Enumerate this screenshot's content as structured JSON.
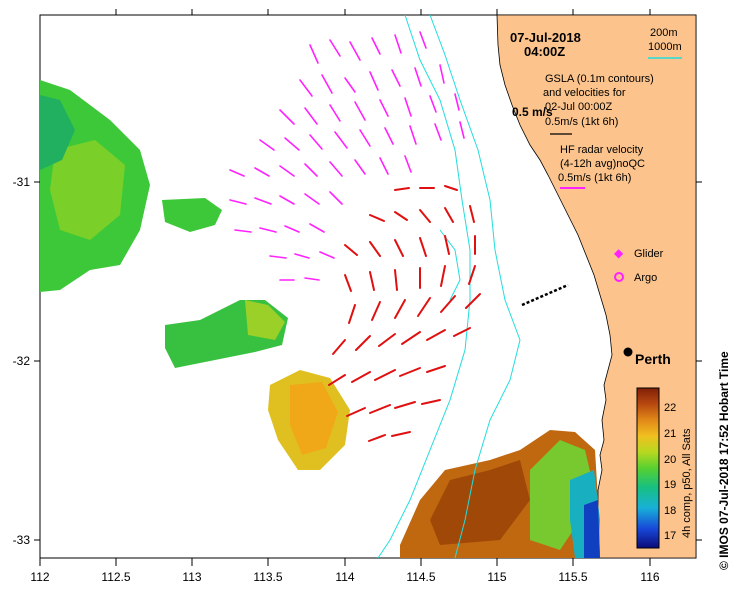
{
  "map": {
    "date_line1": "07-Jul-2018",
    "date_line2": "04:00Z",
    "contour_legend": {
      "c200": "200m",
      "c1000": "1000m"
    },
    "gsla_label": [
      "GSLA (0.1m contours)",
      "and velocities for",
      "02-Jul 00:00Z"
    ],
    "gsla_scale_label": "0.5m/s (1kt 6h)",
    "hf_label": [
      "HF radar velocity",
      "(4-12h avg)noQC"
    ],
    "hf_scale_label": "0.5m/s (1kt 6h)",
    "vector_scale_label": "0.5 m/s",
    "glider_label": "Glider",
    "argo_label": "Argo",
    "city_label": "Perth",
    "colorbar_title": "4h comp, p50, All Sats",
    "colorbar_ticks": [
      "22",
      "21",
      "20",
      "19",
      "18",
      "17"
    ],
    "credit": "© IMOS 07-Jul-2018 17:52 Hobart Time",
    "lon_ticks": [
      "112",
      "112.5",
      "113",
      "113.5",
      "114",
      "114.5",
      "115",
      "115.5",
      "116"
    ],
    "lat_ticks": [
      "-31",
      "-32",
      "-33"
    ]
  },
  "colors": {
    "land": "#fcc48c",
    "hf_arrows": "#ff22ff",
    "gsla_arrows": "#e01010",
    "contours": "#22dddd"
  }
}
